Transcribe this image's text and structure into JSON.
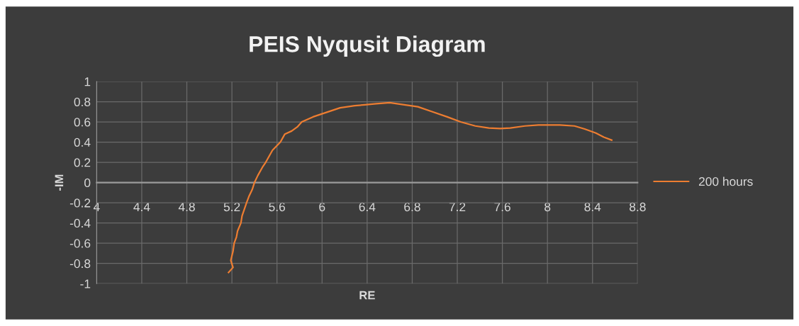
{
  "chart_data": {
    "type": "line",
    "title": "PEIS Nyqusit Diagram",
    "xlabel": "RE",
    "ylabel": "-IM",
    "xlim": [
      4,
      8.8
    ],
    "xticks": [
      4,
      4.4,
      4.8,
      5.2,
      5.6,
      6,
      6.4,
      6.8,
      7.2,
      7.6,
      8,
      8.4,
      8.8
    ],
    "ylim": [
      -1,
      1
    ],
    "yticks": [
      -1,
      -0.8,
      -0.6,
      -0.4,
      -0.2,
      0,
      0.2,
      0.4,
      0.6,
      0.8,
      1
    ],
    "grid": true,
    "legend": "right",
    "marker": "none",
    "line_style": "solid",
    "series": [
      {
        "name": "200 hours",
        "color": "#ed7d31",
        "x": [
          5.17,
          5.21,
          5.19,
          5.21,
          5.22,
          5.24,
          5.25,
          5.28,
          5.29,
          5.33,
          5.35,
          5.38,
          5.4,
          5.43,
          5.47,
          5.5,
          5.56,
          5.63,
          5.67,
          5.73,
          5.78,
          5.82,
          5.92,
          6.0,
          6.16,
          6.29,
          6.38,
          6.48,
          6.6,
          6.73,
          6.85,
          6.98,
          7.11,
          7.23,
          7.36,
          7.48,
          7.58,
          7.67,
          7.8,
          7.92,
          8.02,
          8.11,
          8.24,
          8.33,
          8.43,
          8.5,
          8.57
        ],
        "values": [
          -0.89,
          -0.84,
          -0.77,
          -0.68,
          -0.6,
          -0.54,
          -0.48,
          -0.4,
          -0.33,
          -0.2,
          -0.14,
          -0.07,
          0,
          0.07,
          0.15,
          0.2,
          0.32,
          0.4,
          0.48,
          0.51,
          0.55,
          0.6,
          0.65,
          0.68,
          0.74,
          0.76,
          0.77,
          0.78,
          0.79,
          0.77,
          0.75,
          0.7,
          0.65,
          0.6,
          0.56,
          0.54,
          0.535,
          0.54,
          0.56,
          0.57,
          0.57,
          0.57,
          0.56,
          0.53,
          0.49,
          0.45,
          0.42
        ]
      }
    ]
  }
}
